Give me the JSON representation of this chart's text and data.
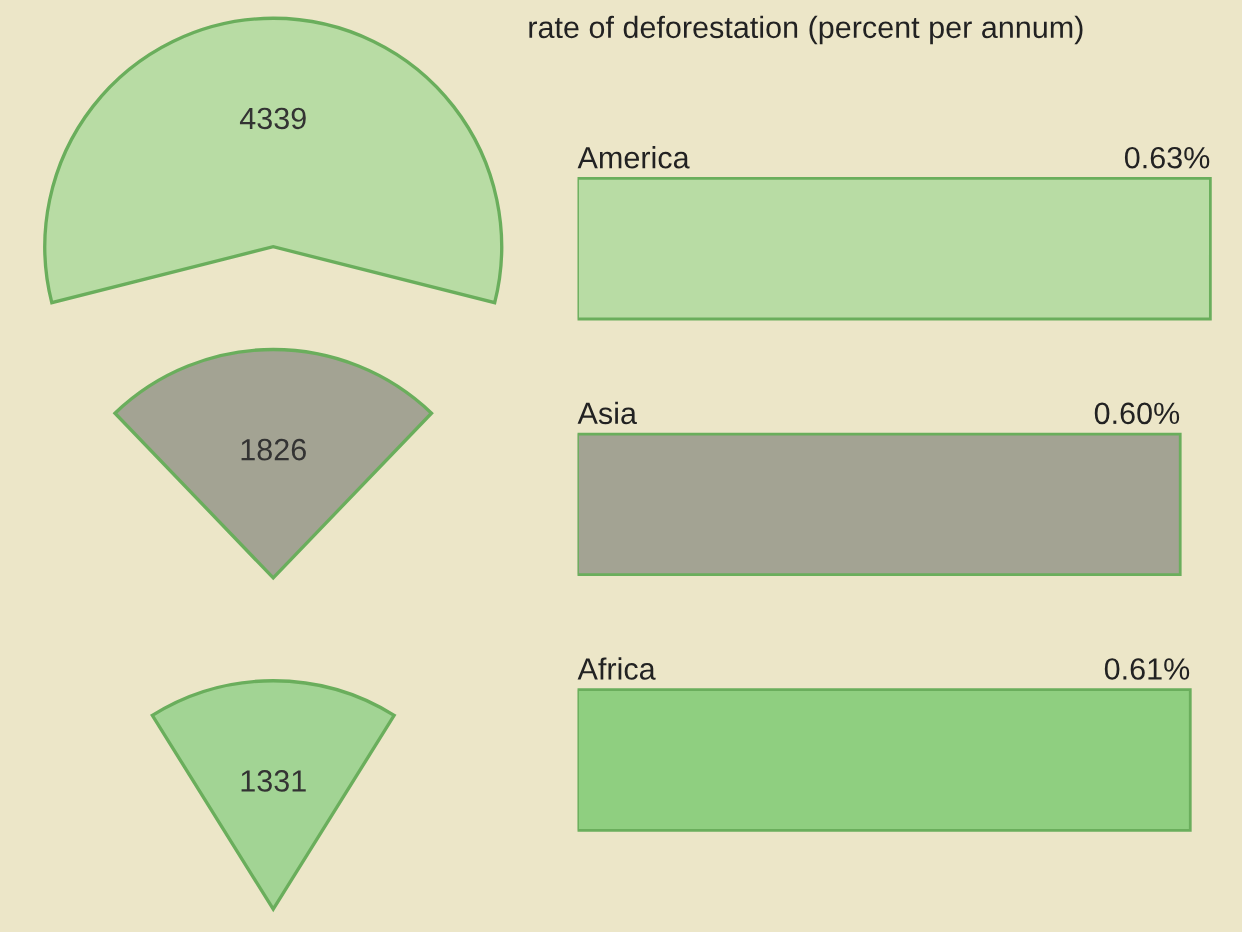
{
  "chart_data": [
    {
      "type": "other",
      "values": [
        4339,
        1826,
        1331
      ],
      "colors": [
        "#b8dca4",
        "#a3a393",
        "#a2d494"
      ],
      "data_labels": true
    },
    {
      "type": "bar",
      "orientation": "horizontal",
      "title": "rate of deforestation (percent per annum)",
      "categories": [
        "America",
        "Asia",
        "Africa"
      ],
      "values": [
        0.63,
        0.6,
        0.61
      ],
      "value_labels": [
        "0.63%",
        "0.60%",
        "0.61%"
      ],
      "colors": [
        "#b8dca4",
        "#a3a393",
        "#8fcf80"
      ],
      "tick_labels": false
    }
  ]
}
